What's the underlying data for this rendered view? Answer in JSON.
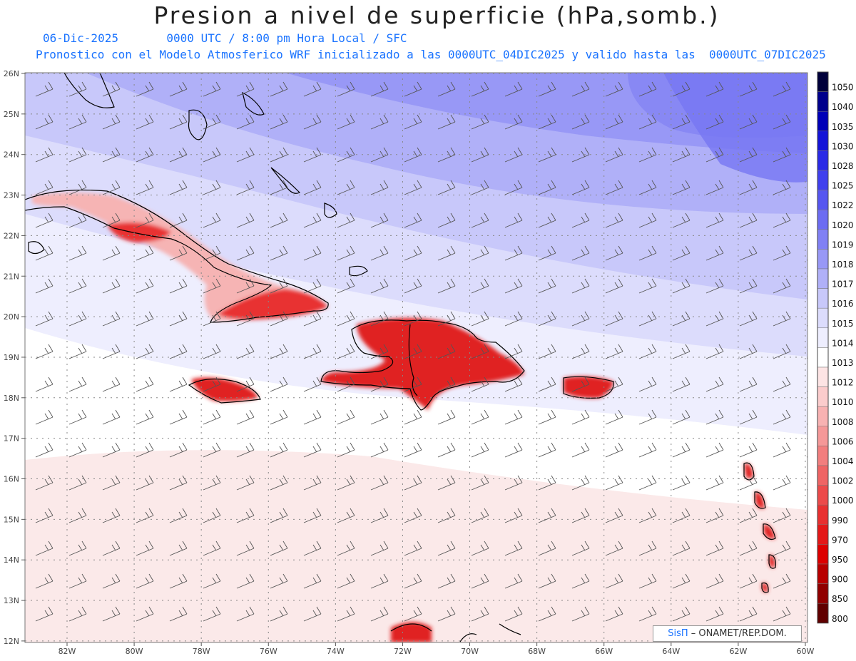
{
  "title": "Presion a nivel de superficie (hPa,somb.)",
  "date": "06-Dic-2025",
  "time_info": "0000 UTC / 8:00 pm Hora Local / SFC",
  "forecast_info": "Pronostico con el Modelo Atmosferico WRF inicializado a las 0000UTC_04DIC2025 y valido hasta las  0000UTC_07DIC2025",
  "x_ticks": [
    "82W",
    "80W",
    "78W",
    "76W",
    "74W",
    "72W",
    "70W",
    "68W",
    "66W",
    "64W",
    "62W",
    "60W"
  ],
  "y_ticks": [
    "26N",
    "25N",
    "24N",
    "23N",
    "22N",
    "21N",
    "20N",
    "19N",
    "18N",
    "17N",
    "16N",
    "15N",
    "14N",
    "13N",
    "12N"
  ],
  "colorbar": {
    "levels": [
      "1050",
      "1040",
      "1035",
      "1030",
      "1028",
      "1025",
      "1022",
      "1020",
      "1019",
      "1018",
      "1017",
      "1016",
      "1015",
      "1014",
      "1013",
      "1012",
      "1010",
      "1008",
      "1006",
      "1004",
      "1002",
      "1000",
      "990",
      "970",
      "950",
      "900",
      "850",
      "800"
    ],
    "colors": [
      "#00003a",
      "#00008c",
      "#0000b8",
      "#1414d8",
      "#2a2ae6",
      "#4040ee",
      "#5656f0",
      "#6c6cf2",
      "#8080f4",
      "#9898f6",
      "#b0b0f8",
      "#c8c8fa",
      "#dcdcfc",
      "#eeeefe",
      "#ffffff",
      "#fde4e4",
      "#fbcccc",
      "#f8b2b2",
      "#f59898",
      "#f27e7e",
      "#ef6464",
      "#ec4a4a",
      "#e83030",
      "#e41818",
      "#dd0000",
      "#b80000",
      "#900000",
      "#600000"
    ]
  },
  "credit": {
    "logo": "SisΠ",
    "text": " – ONAMET/REP.DOM."
  },
  "colors": {
    "accent": "#1a73ff",
    "high_pressure": "#7777f2",
    "low_pressure": "#e83030"
  }
}
